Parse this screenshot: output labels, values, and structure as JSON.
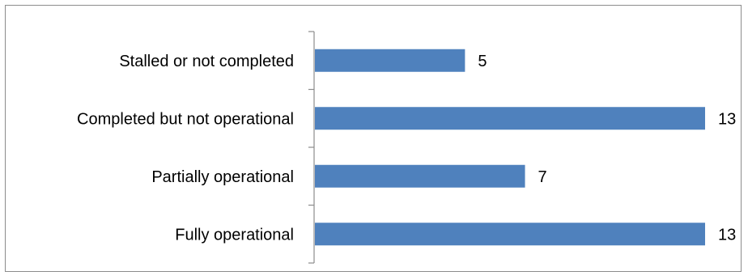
{
  "chart_data": {
    "type": "bar",
    "orientation": "horizontal",
    "categories": [
      "Stalled or not completed",
      "Completed but not operational",
      "Partially operational",
      "Fully operational"
    ],
    "values": [
      5,
      13,
      7,
      13
    ],
    "title": "",
    "xlabel": "",
    "ylabel": "",
    "xlim": [
      0,
      13
    ],
    "grid": false,
    "legend": "none",
    "bar_color": "#4f81bd",
    "data_labels": true
  }
}
